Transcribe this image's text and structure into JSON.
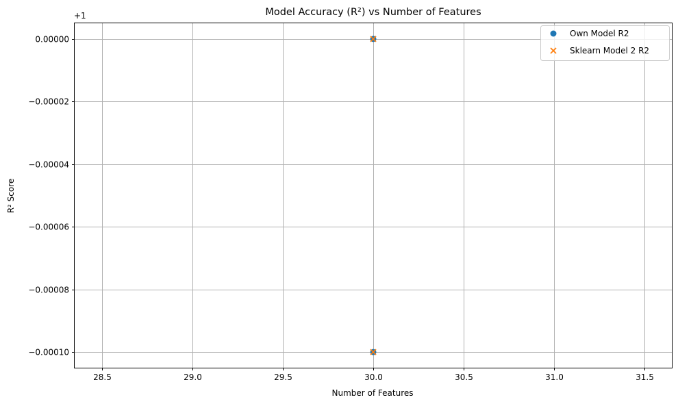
{
  "chart_data": {
    "type": "scatter",
    "title": "Model Accuracy (R²) vs Number of Features",
    "xlabel": "Number of Features",
    "ylabel": "R² Score",
    "offset_text": "+1",
    "xlim": [
      28.35,
      31.65
    ],
    "ylim": [
      -0.000105,
      5e-06
    ],
    "xticks": [
      28.5,
      29.0,
      29.5,
      30.0,
      30.5,
      31.0,
      31.5
    ],
    "xtick_labels": [
      "28.5",
      "29.0",
      "29.5",
      "30.0",
      "30.5",
      "31.0",
      "31.5"
    ],
    "yticks": [
      0,
      -2e-05,
      -4e-05,
      -6e-05,
      -8e-05,
      -0.0001
    ],
    "ytick_labels": [
      "0.00000",
      "−0.00002",
      "−0.00004",
      "−0.00006",
      "−0.00008",
      "−0.00010"
    ],
    "grid": true,
    "legend_position": "upper right",
    "series": [
      {
        "name": "Own Model R2",
        "marker": "circle",
        "color": "#1f77b4",
        "points": [
          {
            "x": 30,
            "y": 0
          },
          {
            "x": 30,
            "y": -0.0001
          }
        ]
      },
      {
        "name": "Sklearn Model 2 R2",
        "marker": "x",
        "color": "#ff7f0e",
        "points": [
          {
            "x": 30,
            "y": 0
          },
          {
            "x": 30,
            "y": -0.0001
          }
        ]
      }
    ]
  }
}
